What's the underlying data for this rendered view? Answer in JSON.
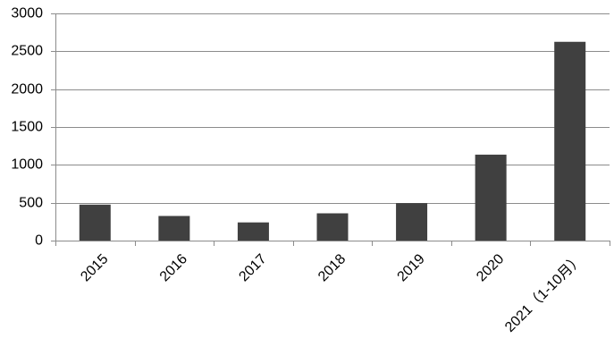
{
  "chart_data": {
    "type": "bar",
    "title": "",
    "xlabel": "",
    "ylabel": "",
    "categories": [
      "2015",
      "2016",
      "2017",
      "2018",
      "2019",
      "2020",
      "2021（1-10月）"
    ],
    "values": [
      475,
      325,
      240,
      360,
      495,
      1135,
      2625
    ],
    "ylim": [
      0,
      3000
    ],
    "yticks": [
      "0",
      "500",
      "1000",
      "1500",
      "2000",
      "2500",
      "3000"
    ],
    "grid": true,
    "legend": "none",
    "colors": {
      "bar": "#404040",
      "grid": "#8c8c8c",
      "text": "#000000"
    }
  }
}
